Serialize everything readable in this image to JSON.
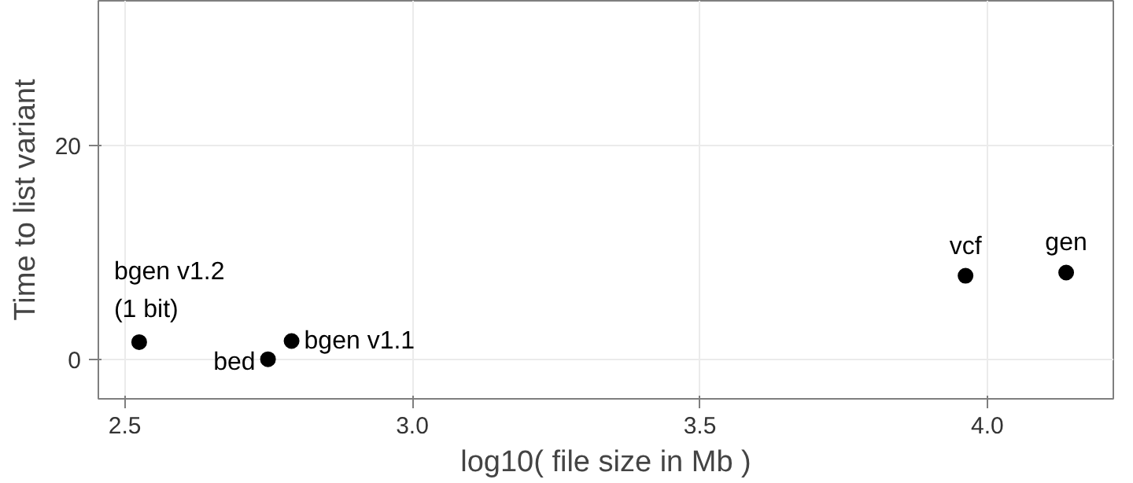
{
  "chart_data": {
    "type": "scatter",
    "xlabel": "log10( file size in Mb )",
    "ylabel": "Time to list variant",
    "x": [
      2.525,
      2.749,
      2.79,
      3.962,
      4.137
    ],
    "values": [
      1.6,
      0.0,
      1.7,
      7.8,
      8.1
    ],
    "color": "#000000",
    "marker": "circle",
    "grid": true,
    "xlim": [
      2.454,
      4.219
    ],
    "ylim": [
      -3.7,
      33.5
    ],
    "xticks": [
      2.5,
      {
        "value": 3,
        "label": "3.0"
      },
      3.5,
      {
        "value": 4,
        "label": "4.0"
      }
    ],
    "yticks": [
      0,
      20
    ],
    "annotations": [
      {
        "text": "bgen v1.2\n(1 bit)",
        "x": 2.525,
        "y": 1.6
      },
      {
        "text": "bed",
        "x": 2.749,
        "y": 0.0
      },
      {
        "text": "bgen v1.1",
        "x": 2.79,
        "y": 1.7
      },
      {
        "text": "vcf",
        "x": 3.962,
        "y": 7.8
      },
      {
        "text": "gen",
        "x": 4.137,
        "y": 8.1
      }
    ]
  }
}
